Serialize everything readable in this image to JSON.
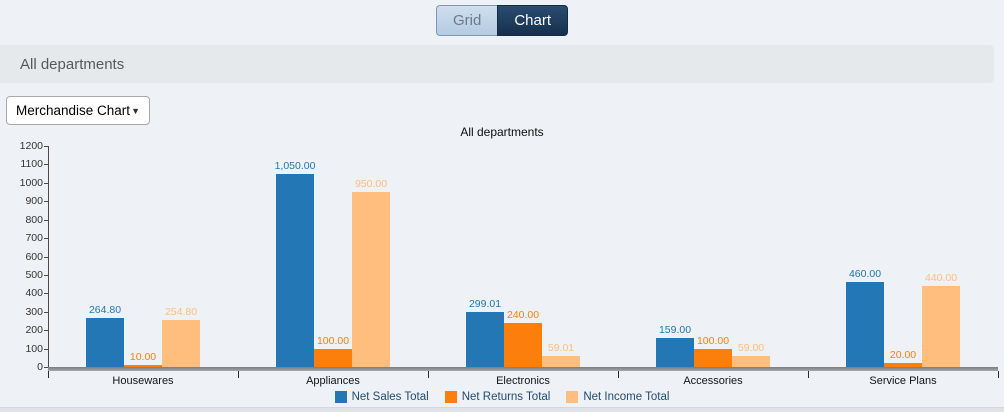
{
  "toggle": {
    "grid_label": "Grid",
    "chart_label": "Chart"
  },
  "header": {
    "title": "All departments"
  },
  "controls": {
    "chart_selector_value": "Merchandise Chart"
  },
  "icons": {
    "dropdown_arrow": "▼"
  },
  "chart_data": {
    "type": "bar",
    "title": "All departments",
    "categories": [
      "Housewares",
      "Appliances",
      "Electronics",
      "Accessories",
      "Service Plans"
    ],
    "series": [
      {
        "name": "Net Sales Total",
        "color": "#2277b4",
        "values": [
          264.8,
          1050.0,
          299.01,
          159.0,
          460.0
        ],
        "labels": [
          "264.80",
          "1,050.00",
          "299.01",
          "159.00",
          "460.00"
        ]
      },
      {
        "name": "Net Returns Total",
        "color": "#fc7f0e",
        "values": [
          10.0,
          100.0,
          240.0,
          100.0,
          20.0
        ],
        "labels": [
          "10.00",
          "100.00",
          "240.00",
          "100.00",
          "20.00"
        ]
      },
      {
        "name": "Net Income Total",
        "color": "#ffbd7e",
        "values": [
          254.8,
          950.0,
          59.01,
          59.0,
          440.0
        ],
        "labels": [
          "254.80",
          "950.00",
          "59.01",
          "59.00",
          "440.00"
        ]
      }
    ],
    "ylim": [
      0,
      1200
    ],
    "ytick_step": 100,
    "grid": false,
    "legend_position": "bottom"
  }
}
